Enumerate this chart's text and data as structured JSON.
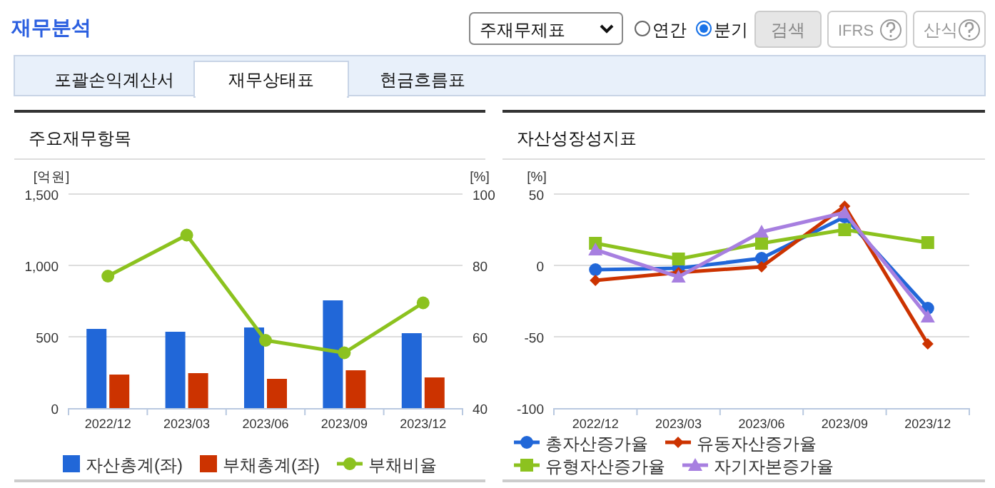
{
  "chart_data": [
    {
      "type": "other",
      "title": "재무분석",
      "annotations": [
        "주재무제표",
        "연간",
        "분기",
        "검색",
        "IFRS",
        "산식",
        "포괄손익계산서",
        "재무상태표",
        "현금흐름표"
      ]
    },
    {
      "type": "bar",
      "title": "주요재무항목",
      "ylabel": "[억원]",
      "y2label": "[%]",
      "categories": [
        "2022/12",
        "2023/03",
        "2023/06",
        "2023/09",
        "2023/12"
      ],
      "series": [
        {
          "name": "자산총계(좌)",
          "color": "#2167d8",
          "values": [
            555,
            535,
            565,
            755,
            525
          ]
        },
        {
          "name": "부채총계(좌)",
          "color": "#cc3300",
          "values": [
            235,
            245,
            205,
            265,
            215
          ]
        },
        {
          "name": "부채비율",
          "type": "line",
          "axis": "y2",
          "marker": "circle",
          "color": "#8cc21f",
          "values": [
            77,
            88.5,
            59,
            55.5,
            69.5
          ]
        }
      ],
      "ylim": [
        0,
        1500
      ],
      "yticks": [
        0,
        500,
        {
          "value": 1000,
          "label": "1,000"
        },
        {
          "value": 1500,
          "label": "1,500"
        }
      ],
      "y2lim": [
        40,
        100
      ],
      "y2ticks": [
        40,
        60,
        80,
        100
      ],
      "grid": "y",
      "legend": "bottom"
    },
    {
      "type": "line",
      "title": "자산성장성지표",
      "ylabel": "[%]",
      "categories": [
        "2022/12",
        "2023/03",
        "2023/06",
        "2023/09",
        "2023/12"
      ],
      "series": [
        {
          "name": "총자산증가율",
          "marker": "circle",
          "color": "#2167d8",
          "values": [
            -3,
            -2,
            5,
            34,
            -30
          ]
        },
        {
          "name": "유동자산증가율",
          "marker": "diamond",
          "color": "#cc3300",
          "values": [
            -10.5,
            -5,
            -1,
            41.5,
            -55
          ]
        },
        {
          "name": "유형자산증가율",
          "marker": "square",
          "color": "#8cc21f",
          "values": [
            15.5,
            4.5,
            15.5,
            25,
            16
          ]
        },
        {
          "name": "자기자본증가율",
          "marker": "triangle",
          "color": "#a77fe0",
          "values": [
            11,
            -8,
            23.5,
            37,
            -36
          ]
        }
      ],
      "ylim": [
        -100,
        50
      ],
      "yticks": [
        -100,
        -50,
        0,
        50
      ],
      "grid": "y",
      "legend": "bottom"
    }
  ]
}
